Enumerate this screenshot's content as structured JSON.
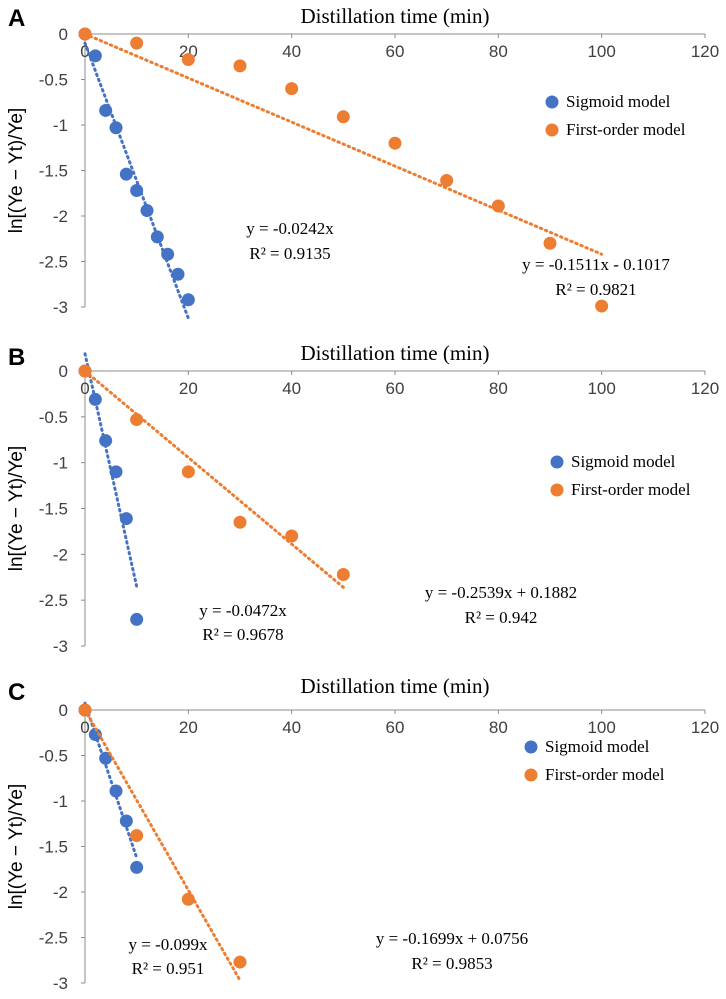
{
  "colors": {
    "sigmoid": "#4472C4",
    "first_order": "#ED7D31",
    "axis": "#8c8c8c"
  },
  "chart_data": [
    {
      "type": "scatter",
      "panel_label": "A",
      "title": "Distillation time (min)",
      "ylabel": "ln[(Ye − Yt)/Ye]",
      "xlim": [
        0,
        120
      ],
      "ylim": [
        -3,
        0
      ],
      "x_ticks": [
        "0",
        "20",
        "40",
        "60",
        "80",
        "100",
        "120"
      ],
      "y_ticks": [
        "0",
        "-0.5",
        "-1",
        "-1.5",
        "-2",
        "-2.5",
        "-3"
      ],
      "legend_position": "right",
      "series": [
        {
          "name": "Sigmoid model",
          "color_key": "sigmoid",
          "x": [
            0,
            2,
            4,
            6,
            8,
            10,
            12,
            14,
            16,
            18,
            20
          ],
          "y": [
            0,
            -0.24,
            -0.84,
            -1.03,
            -1.54,
            -1.72,
            -1.94,
            -2.23,
            -2.42,
            -2.64,
            -2.92
          ],
          "trend": {
            "slope": -0.1511,
            "intercept": -0.1017,
            "x_start": 0,
            "x_end": 20
          },
          "equation": "y = -0.1511x - 0.1017",
          "r2": "R² = 0.9821"
        },
        {
          "name": "First-order model",
          "color_key": "first_order",
          "x": [
            0,
            10,
            20,
            30,
            40,
            50,
            60,
            70,
            80,
            90,
            100
          ],
          "y": [
            0,
            -0.1,
            -0.28,
            -0.35,
            -0.6,
            -0.91,
            -1.2,
            -1.61,
            -1.89,
            -2.3,
            -2.99
          ],
          "trend": {
            "slope": -0.0242,
            "intercept": 0,
            "x_start": 0,
            "x_end": 100
          },
          "equation": "y = -0.0242x",
          "r2": "R² = 0.9135"
        }
      ]
    },
    {
      "type": "scatter",
      "panel_label": "B",
      "title": "Distillation time (min)",
      "ylabel": "ln[(Ye − Yt)/Ye]",
      "xlim": [
        0,
        120
      ],
      "ylim": [
        -3,
        0
      ],
      "x_ticks": [
        "0",
        "20",
        "40",
        "60",
        "80",
        "100",
        "120"
      ],
      "y_ticks": [
        "0",
        "-0.5",
        "-1",
        "-1.5",
        "-2",
        "-2.5",
        "-3"
      ],
      "legend_position": "right",
      "series": [
        {
          "name": "Sigmoid model",
          "color_key": "sigmoid",
          "x": [
            0,
            2,
            4,
            6,
            8,
            10
          ],
          "y": [
            0,
            -0.31,
            -0.76,
            -1.1,
            -1.61,
            -2.71
          ],
          "trend": {
            "slope": -0.2539,
            "intercept": 0.1882,
            "x_start": 0,
            "x_end": 10
          },
          "equation": "y = -0.2539x + 0.1882",
          "r2": "R² = 0.942"
        },
        {
          "name": "First-order model",
          "color_key": "first_order",
          "x": [
            0,
            10,
            20,
            30,
            40,
            50
          ],
          "y": [
            0,
            -0.53,
            -1.1,
            -1.65,
            -1.8,
            -2.22
          ],
          "trend": {
            "slope": -0.0472,
            "intercept": 0,
            "x_start": 0,
            "x_end": 50
          },
          "equation": "y = -0.0472x",
          "r2": "R² = 0.9678"
        }
      ]
    },
    {
      "type": "scatter",
      "panel_label": "C",
      "title": "Distillation time (min)",
      "ylabel": "ln[(Ye − Yt)/Ye]",
      "xlim": [
        0,
        120
      ],
      "ylim": [
        -3,
        0
      ],
      "x_ticks": [
        "0",
        "20",
        "40",
        "60",
        "80",
        "100",
        "120"
      ],
      "y_ticks": [
        "0",
        "-0.5",
        "-1",
        "-1.5",
        "-2",
        "-2.5",
        "-3"
      ],
      "legend_position": "right",
      "series": [
        {
          "name": "Sigmoid model",
          "color_key": "sigmoid",
          "x": [
            0,
            2,
            4,
            6,
            8,
            10
          ],
          "y": [
            0,
            -0.27,
            -0.53,
            -0.89,
            -1.22,
            -1.73
          ],
          "trend": {
            "slope": -0.1699,
            "intercept": 0.0756,
            "x_start": 0,
            "x_end": 10
          },
          "equation": "y = -0.1699x + 0.0756",
          "r2": "R² = 0.9853"
        },
        {
          "name": "First-order model",
          "color_key": "first_order",
          "x": [
            0,
            10,
            20,
            30
          ],
          "y": [
            0,
            -1.38,
            -2.08,
            -2.77
          ],
          "trend": {
            "slope": -0.099,
            "intercept": 0,
            "x_start": 0,
            "x_end": 30
          },
          "equation": "y = -0.099x",
          "r2": "R² = 0.951"
        }
      ]
    }
  ]
}
